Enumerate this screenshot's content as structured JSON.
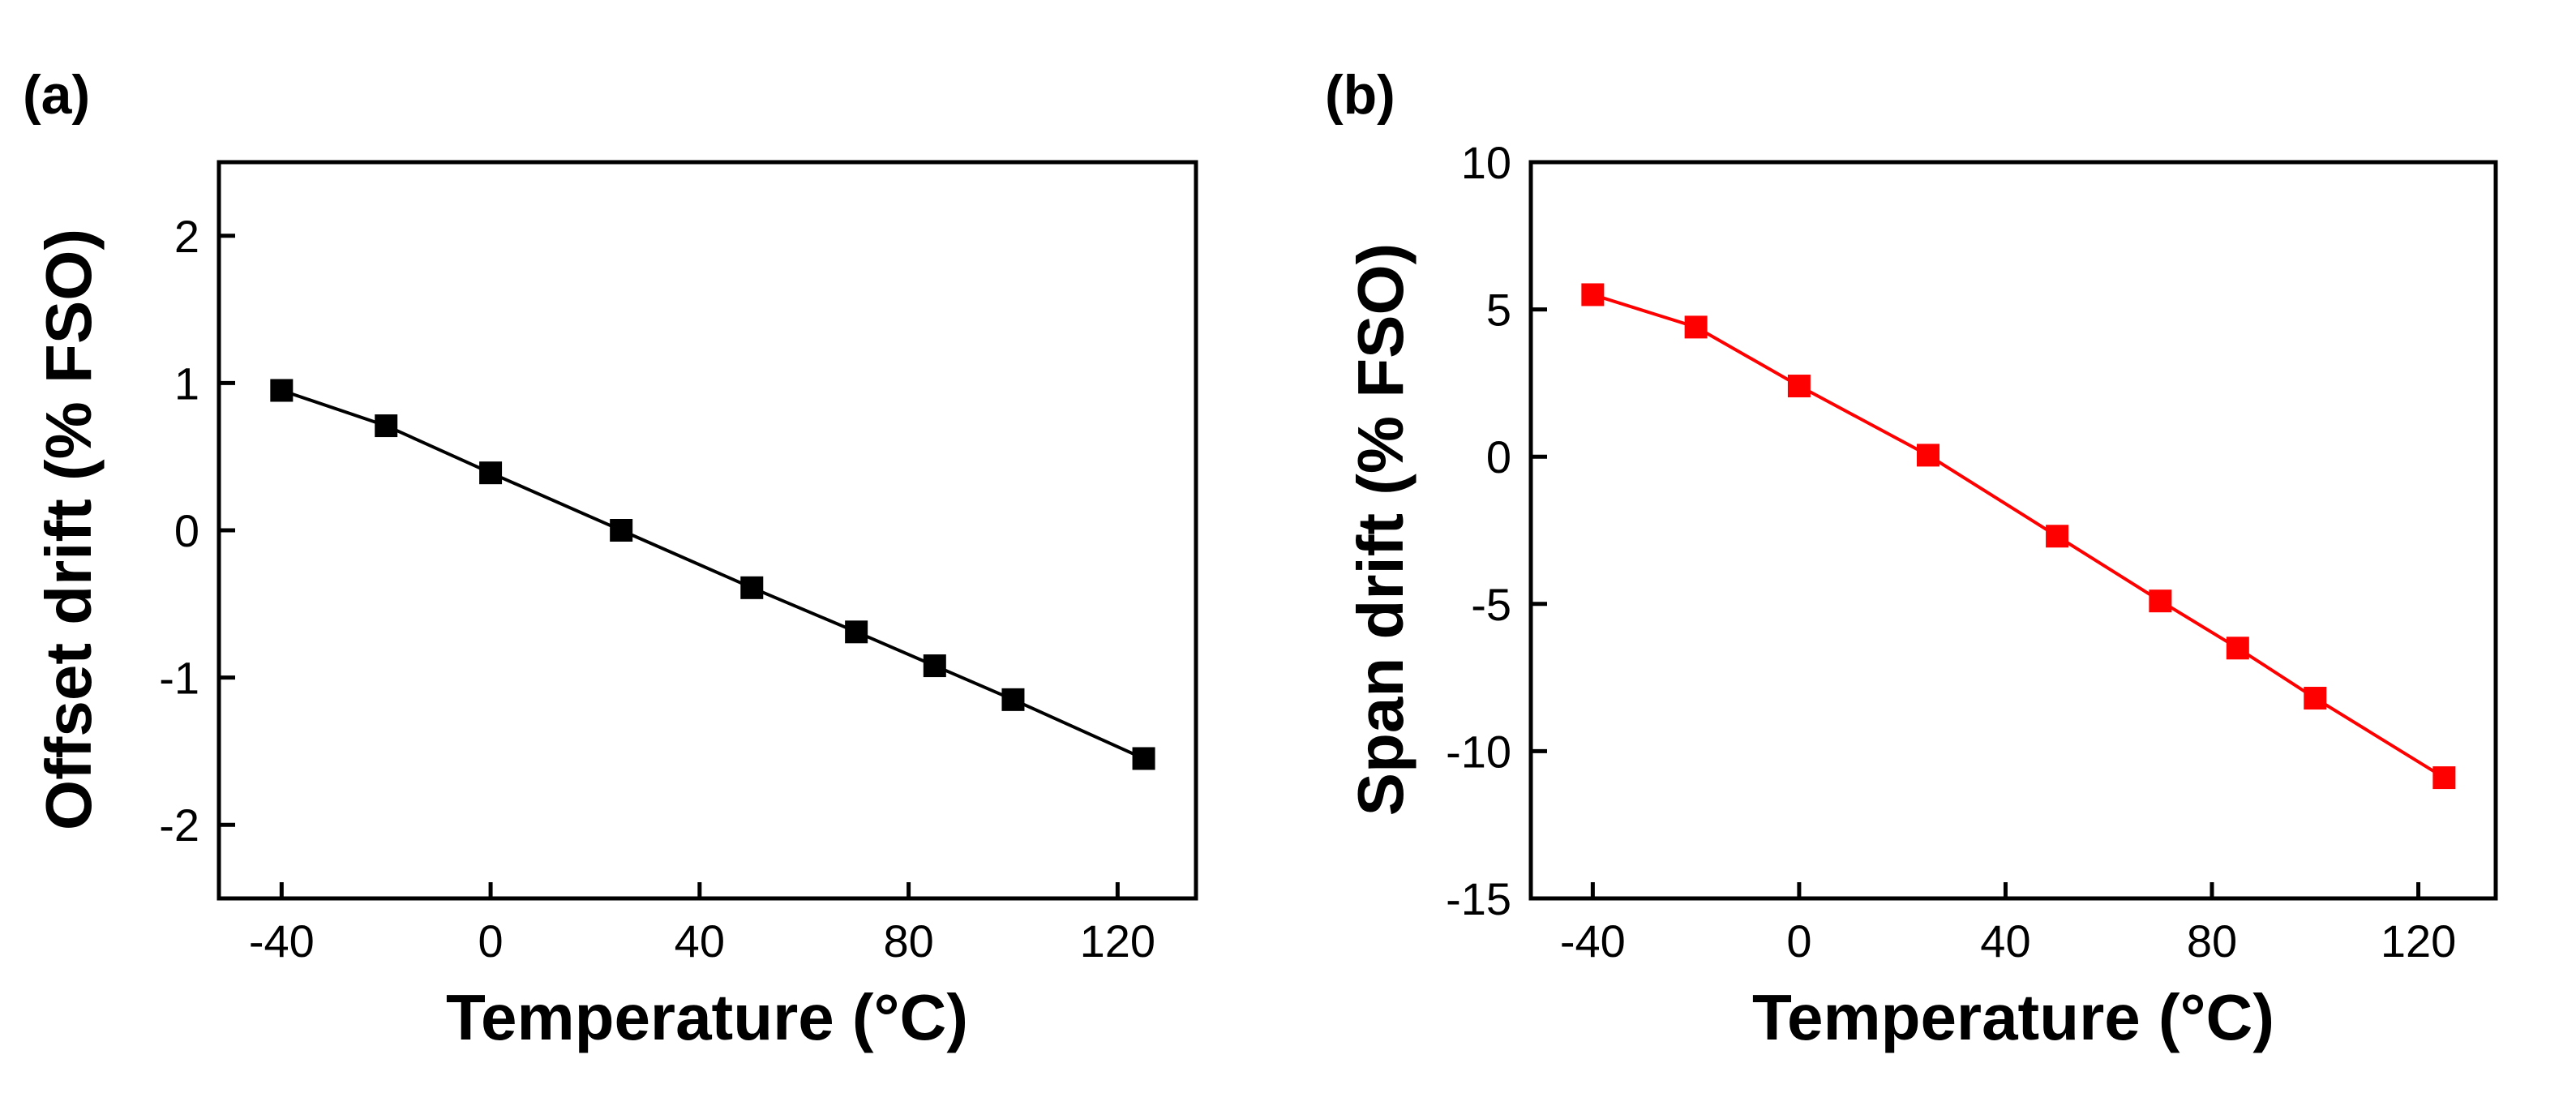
{
  "chart_data": [
    {
      "type": "line",
      "panel_label": "(a)",
      "title": "",
      "xlabel": "Temperature (°C)",
      "ylabel": "Offset drift (% FSO)",
      "xlim": [
        -52,
        135
      ],
      "ylim": [
        -2.5,
        2.5
      ],
      "xticks": [
        -40,
        0,
        40,
        80,
        120
      ],
      "yticks": [
        -2,
        -1,
        0,
        1,
        2
      ],
      "xtick_labels": [
        "-40",
        "0",
        "40",
        "80",
        "120"
      ],
      "ytick_labels": [
        "-2",
        "-1",
        "0",
        "1",
        "2"
      ],
      "grid": false,
      "series": [
        {
          "name": "Offset drift",
          "color": "#000000",
          "marker": "square",
          "x": [
            -40,
            -20,
            0,
            25,
            50,
            70,
            85,
            100,
            125
          ],
          "y": [
            0.95,
            0.71,
            0.39,
            0.0,
            -0.39,
            -0.69,
            -0.92,
            -1.15,
            -1.55
          ]
        }
      ]
    },
    {
      "type": "line",
      "panel_label": "(b)",
      "title": "",
      "xlabel": "Temperature (°C)",
      "ylabel": "Span drift (% FSO)",
      "xlim": [
        -52,
        135
      ],
      "ylim": [
        -15,
        10
      ],
      "xticks": [
        -40,
        0,
        40,
        80,
        120
      ],
      "yticks": [
        -15,
        -10,
        -5,
        0,
        5,
        10
      ],
      "xtick_labels": [
        "-40",
        "0",
        "40",
        "80",
        "120"
      ],
      "ytick_labels": [
        "-15",
        "-10",
        "-5",
        "0",
        "5",
        "10"
      ],
      "grid": false,
      "series": [
        {
          "name": "Span drift",
          "color": "#ff0000",
          "marker": "square",
          "x": [
            -40,
            -20,
            0,
            25,
            50,
            70,
            85,
            100,
            125
          ],
          "y": [
            5.5,
            4.4,
            2.4,
            0.05,
            -2.7,
            -4.9,
            -6.5,
            -8.2,
            -10.9
          ]
        }
      ]
    }
  ]
}
